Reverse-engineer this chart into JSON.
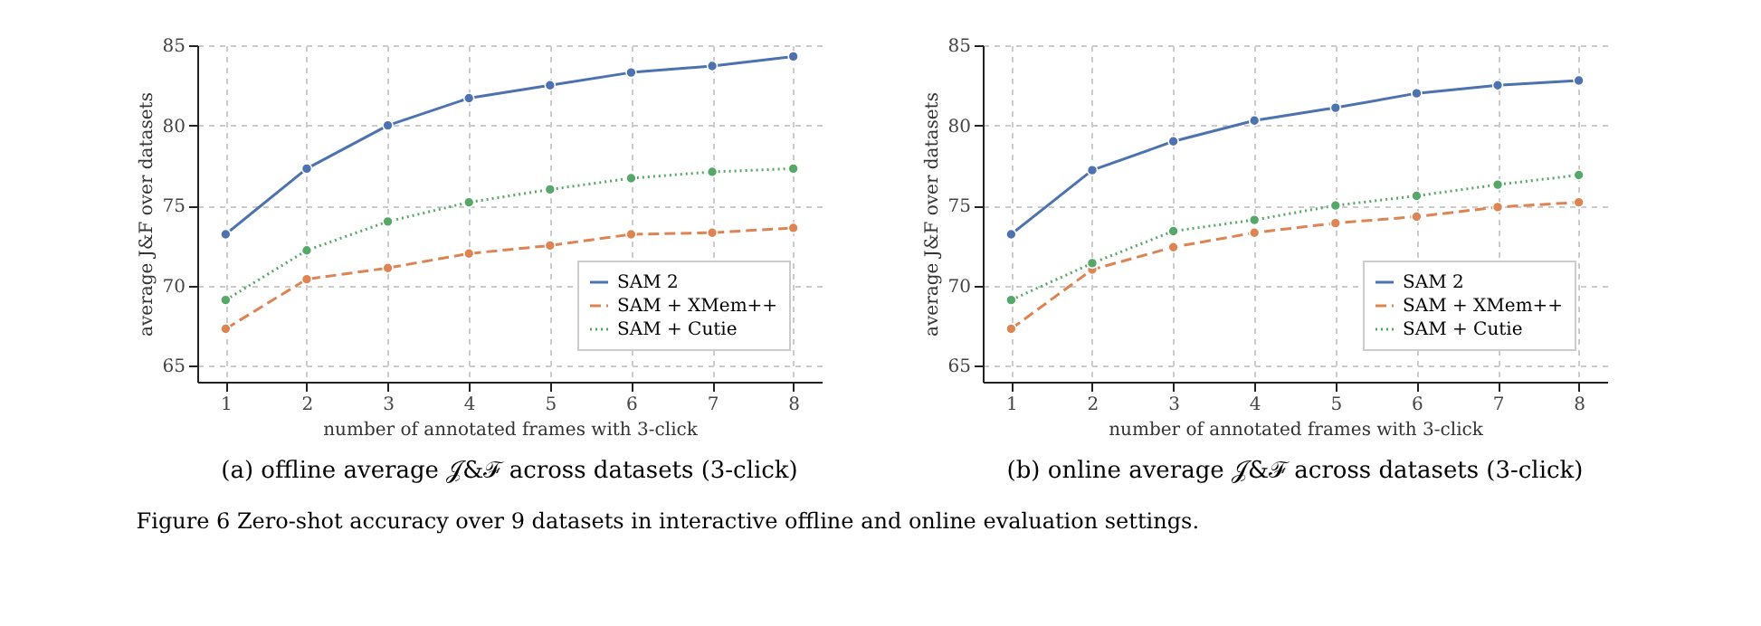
{
  "chart_data": [
    {
      "type": "line",
      "title": "(a) offline average 𝒥&ℱ across datasets (3-click)",
      "xlabel": "number of annotated frames with 3-click",
      "ylabel": "average J&F over datasets",
      "x": [
        1,
        2,
        3,
        4,
        5,
        6,
        7,
        8
      ],
      "xlim": [
        0.65,
        8.35
      ],
      "xticks": [
        1,
        2,
        3,
        4,
        5,
        6,
        7,
        8
      ],
      "ylim": [
        64,
        85
      ],
      "yticks": [
        65,
        70,
        75,
        80,
        85
      ],
      "grid": true,
      "legend": "bottom right",
      "marker": "circle",
      "series": [
        {
          "name": "SAM 2",
          "color": "#4c72b0",
          "line_style": "solid",
          "values": [
            73.2,
            77.3,
            80.0,
            81.7,
            82.5,
            83.3,
            83.7,
            84.3
          ]
        },
        {
          "name": "SAM + XMem++",
          "color": "#dd8452",
          "line_style": "dashed",
          "values": [
            67.3,
            70.4,
            71.1,
            72.0,
            72.5,
            73.2,
            73.3,
            73.6
          ]
        },
        {
          "name": "SAM + Cutie",
          "color": "#55a868",
          "line_style": "dotted",
          "values": [
            69.1,
            72.2,
            74.0,
            75.2,
            76.0,
            76.7,
            77.1,
            77.3
          ]
        }
      ]
    },
    {
      "type": "line",
      "title": "(b) online average 𝒥&ℱ across datasets (3-click)",
      "xlabel": "number of annotated frames with 3-click",
      "ylabel": "average J&F over datasets",
      "x": [
        1,
        2,
        3,
        4,
        5,
        6,
        7,
        8
      ],
      "xlim": [
        0.65,
        8.35
      ],
      "xticks": [
        1,
        2,
        3,
        4,
        5,
        6,
        7,
        8
      ],
      "ylim": [
        64,
        85
      ],
      "yticks": [
        65,
        70,
        75,
        80,
        85
      ],
      "grid": true,
      "legend": "bottom right",
      "marker": "circle",
      "annotations": [
        "Figure 6  Zero-shot accuracy over 9 datasets in interactive offline and online evaluation settings."
      ],
      "series": [
        {
          "name": "SAM 2",
          "color": "#4c72b0",
          "line_style": "solid",
          "values": [
            73.2,
            77.2,
            79.0,
            80.3,
            81.1,
            82.0,
            82.5,
            82.8
          ]
        },
        {
          "name": "SAM + XMem++",
          "color": "#dd8452",
          "line_style": "dashed",
          "values": [
            67.3,
            71.0,
            72.4,
            73.3,
            73.9,
            74.3,
            74.9,
            75.2
          ]
        },
        {
          "name": "SAM + Cutie",
          "color": "#55a868",
          "line_style": "dotted",
          "values": [
            69.1,
            71.4,
            73.4,
            74.1,
            75.0,
            75.6,
            76.3,
            76.9
          ]
        }
      ]
    }
  ]
}
